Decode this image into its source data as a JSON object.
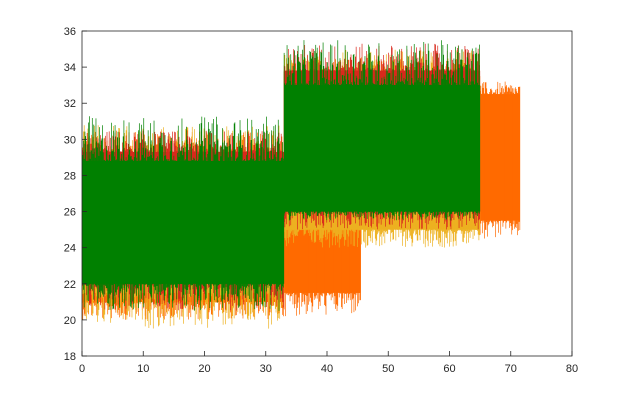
{
  "chart_data": {
    "type": "line",
    "title": "",
    "xlabel": "",
    "ylabel": "",
    "xlim": [
      0,
      80
    ],
    "ylim": [
      18,
      36
    ],
    "xticks": [
      0,
      10,
      20,
      30,
      40,
      50,
      60,
      70,
      80
    ],
    "yticks": [
      18,
      20,
      22,
      24,
      26,
      28,
      30,
      32,
      34,
      36
    ],
    "grid": false,
    "legend": "none",
    "series": [
      {
        "color": "#ff6a00",
        "segments": [
          {
            "x_start": 0,
            "x_end": 33,
            "y_low": 21,
            "y_high": 29,
            "spike_low": 20,
            "spike_high": 30.5
          },
          {
            "x_start": 33,
            "x_end": 45.5,
            "y_low": 21.5,
            "y_high": 26,
            "spike_low": 20.2,
            "spike_high": 27
          },
          {
            "x_start": 33,
            "x_end": 65,
            "y_low": 26,
            "y_high": 33.5,
            "spike_low": 25,
            "spike_high": 34.5
          },
          {
            "x_start": 65,
            "x_end": 71.5,
            "y_low": 25.5,
            "y_high": 32.5,
            "spike_low": 24.5,
            "spike_high": 33.2
          }
        ]
      },
      {
        "color": "#edb120",
        "segments": [
          {
            "x_start": 0,
            "x_end": 33,
            "y_low": 21.5,
            "y_high": 29,
            "spike_low": 19.5,
            "spike_high": 30.8
          },
          {
            "x_start": 33,
            "x_end": 65,
            "y_low": 25,
            "y_high": 33.5,
            "spike_low": 24,
            "spike_high": 35
          }
        ]
      },
      {
        "color": "#d9291c",
        "segments": [
          {
            "x_start": 0,
            "x_end": 33,
            "y_low": 22,
            "y_high": 29.3,
            "spike_low": 20.5,
            "spike_high": 30.5
          },
          {
            "x_start": 33,
            "x_end": 65,
            "y_low": 26,
            "y_high": 33.8,
            "spike_low": 25,
            "spike_high": 35.3
          }
        ]
      },
      {
        "color": "#008000",
        "segments": [
          {
            "x_start": 0,
            "x_end": 33,
            "y_low": 22,
            "y_high": 28.8,
            "spike_low": 20.5,
            "spike_high": 31.3
          },
          {
            "x_start": 33,
            "x_end": 65,
            "y_low": 26,
            "y_high": 33,
            "spike_low": 25.5,
            "spike_high": 35.5
          }
        ]
      }
    ]
  }
}
